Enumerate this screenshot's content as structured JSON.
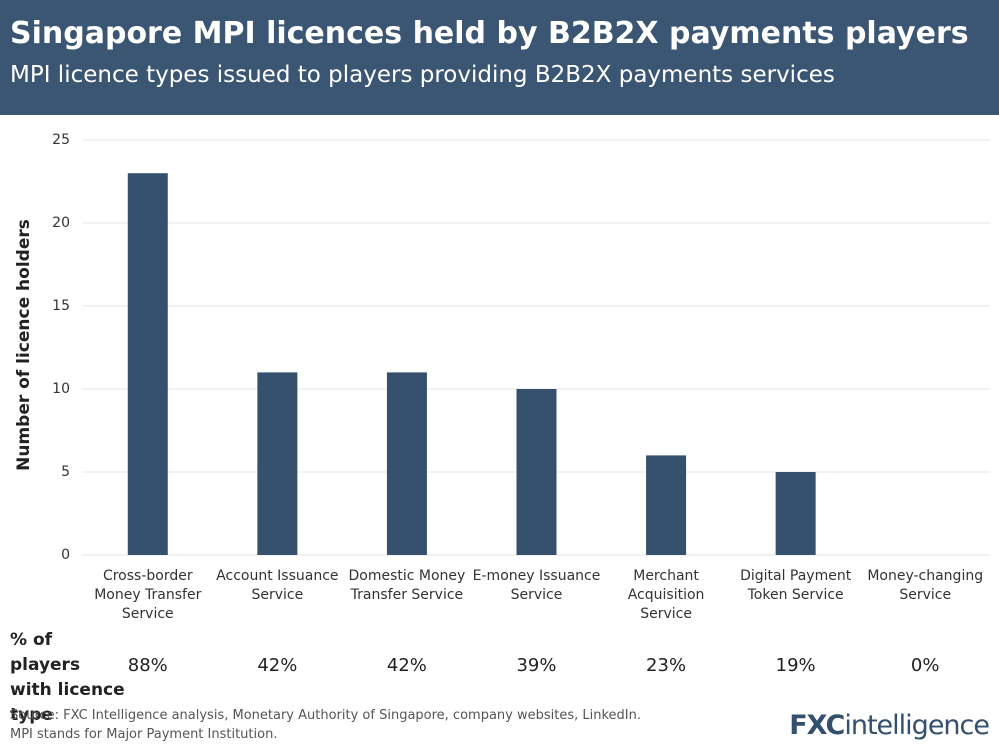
{
  "chart_data": {
    "type": "bar",
    "title": "Singapore MPI licences held by B2B2X payments players",
    "subtitle": "MPI licence types issued to players providing B2B2X payments services",
    "y_label": "Number of licence holders",
    "categories": [
      "Cross-border Money Transfer Service",
      "Account Issuance Service",
      "Domestic Money Transfer Service",
      "E-money Issuance Service",
      "Merchant Acquisition Service",
      "Digital Payment Token Service",
      "Money-changing Service"
    ],
    "values": [
      23,
      11,
      11,
      10,
      6,
      5,
      0
    ],
    "color": "#34506d",
    "ylim": [
      0,
      25
    ],
    "yticks": [
      0,
      5,
      10,
      15,
      20,
      25
    ],
    "grid": true,
    "shares": {
      "label": "% of players with licence type",
      "values": [
        88,
        42,
        42,
        39,
        23,
        19,
        0
      ],
      "value_labels": [
        "88%",
        "42%",
        "42%",
        "39%",
        "23%",
        "19%",
        "0%"
      ]
    },
    "source": "Source: FXC Intelligence analysis, Monetary Authority of Singapore, company websites, LinkedIn.",
    "note": "MPI stands for Major Payment Institution.",
    "logo_prefix": "FXC",
    "logo_suffix": "intelligence"
  }
}
